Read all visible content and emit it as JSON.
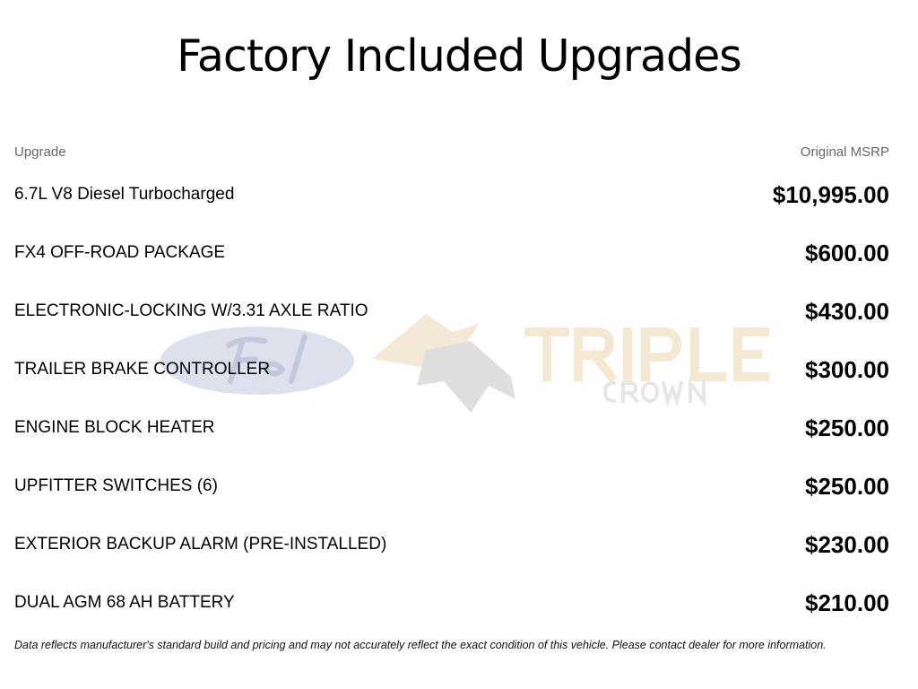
{
  "title": "Factory Included Upgrades",
  "table": {
    "header_upgrade": "Upgrade",
    "header_msrp": "Original MSRP",
    "rows": [
      {
        "name": "6.7L V8 Diesel Turbocharged",
        "price": "$10,995.00"
      },
      {
        "name": "FX4 OFF-ROAD PACKAGE",
        "price": "$600.00"
      },
      {
        "name": "ELECTRONIC-LOCKING W/3.31 AXLE RATIO",
        "price": "$430.00"
      },
      {
        "name": "TRAILER BRAKE CONTROLLER",
        "price": "$300.00"
      },
      {
        "name": "ENGINE BLOCK HEATER",
        "price": "$250.00"
      },
      {
        "name": "UPFITTER SWITCHES (6)",
        "price": "$250.00"
      },
      {
        "name": "EXTERIOR BACKUP ALARM (PRE-INSTALLED)",
        "price": "$230.00"
      },
      {
        "name": "DUAL AGM 68 AH BATTERY",
        "price": "$210.00"
      }
    ]
  },
  "watermark": {
    "brand_text": "Ford",
    "dealer_text": "TRIPLE",
    "dealer_subtext": "CROWN"
  },
  "disclaimer": "Data reflects manufacturer's standard build and pricing and may not accurately reflect the exact condition of this vehicle. Please contact dealer for more information."
}
